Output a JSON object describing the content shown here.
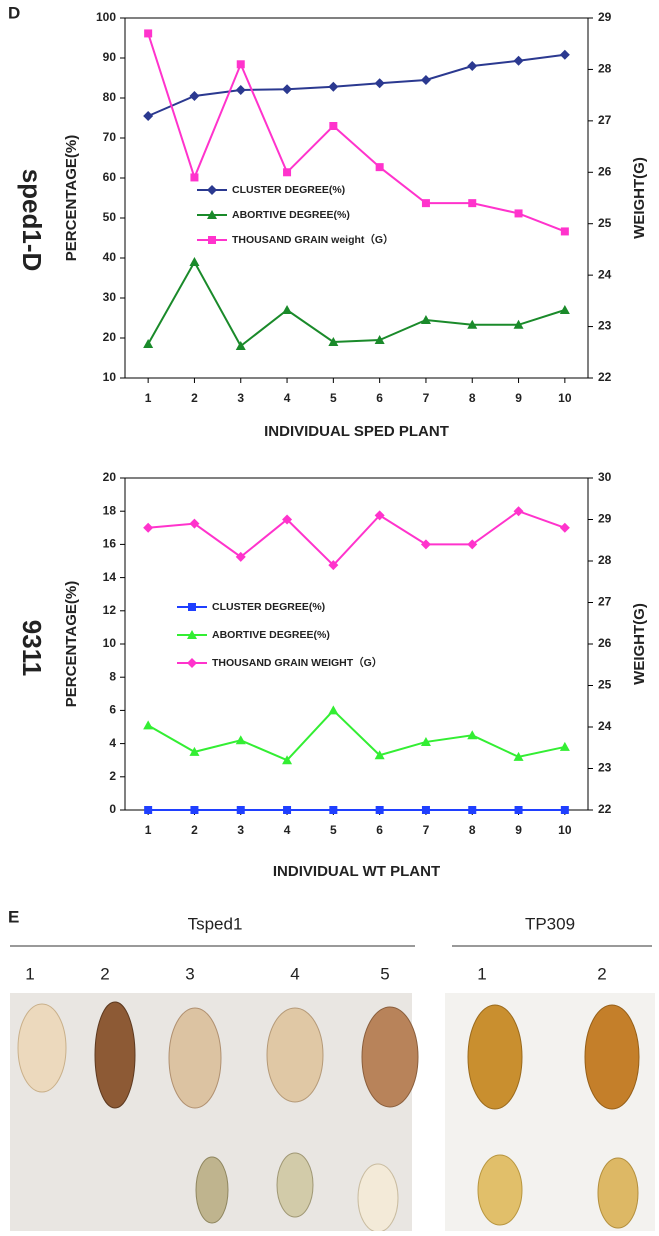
{
  "figure": {
    "panel_d": "D",
    "panel_e": "E",
    "side_labels": [
      "sped1-D",
      "9311"
    ],
    "groups": [
      {
        "name": "Tsped1",
        "items": [
          "1",
          "2",
          "3",
          "4",
          "5"
        ]
      },
      {
        "name": "TP309",
        "items": [
          "1",
          "2"
        ]
      }
    ]
  },
  "chart_data": [
    {
      "type": "line",
      "xlabel": "INDIVIDUAL SPED PLANT",
      "ylabel": "PERCENTAGE(%)",
      "y2label": "WEIGHT(G)",
      "categories": [
        1,
        2,
        3,
        4,
        5,
        6,
        7,
        8,
        9,
        10
      ],
      "ylim": [
        10,
        100
      ],
      "yticks": [
        10,
        20,
        30,
        40,
        50,
        60,
        70,
        80,
        90,
        100
      ],
      "y2lim": [
        22,
        29
      ],
      "y2ticks": [
        22,
        23,
        24,
        25,
        26,
        27,
        28,
        29
      ],
      "series": [
        {
          "name": "CLUSTER DEGREE(%)",
          "color": "#2b3990",
          "marker": "diamond",
          "values": [
            75.5,
            80.5,
            82,
            82.2,
            82.8,
            83.7,
            84.5,
            88,
            89.3,
            90.8
          ]
        },
        {
          "name": "ABORTIVE DEGREE(%)",
          "color": "#1a8a2a",
          "marker": "triangle",
          "values": [
            18.5,
            39,
            18,
            27,
            19,
            19.5,
            24.5,
            23.3,
            23.3,
            27
          ]
        },
        {
          "name": "THOUSAND GRAIN weight（G）",
          "color": "#ff33cc",
          "marker": "square",
          "axis": "y2",
          "values": [
            28.7,
            25.9,
            28.1,
            26.0,
            26.9,
            26.1,
            25.4,
            25.4,
            25.2,
            24.85
          ]
        }
      ]
    },
    {
      "type": "line",
      "xlabel": "INDIVIDUAL WT PLANT",
      "ylabel": "PERCENTAGE(%)",
      "y2label": "WEIGHT(G)",
      "categories": [
        1,
        2,
        3,
        4,
        5,
        6,
        7,
        8,
        9,
        10
      ],
      "ylim": [
        0,
        20
      ],
      "yticks": [
        0,
        2,
        4,
        6,
        8,
        10,
        12,
        14,
        16,
        18,
        20
      ],
      "y2lim": [
        22,
        30
      ],
      "y2ticks": [
        22,
        23,
        24,
        25,
        26,
        27,
        28,
        29,
        30
      ],
      "series": [
        {
          "name": "CLUSTER DEGREE(%)",
          "color": "#1f3fff",
          "marker": "square",
          "values": [
            0,
            0,
            0,
            0,
            0,
            0,
            0,
            0,
            0,
            0
          ]
        },
        {
          "name": "ABORTIVE DEGREE(%)",
          "color": "#33ee33",
          "marker": "triangle",
          "values": [
            5.1,
            3.5,
            4.2,
            3.0,
            6.0,
            3.3,
            4.1,
            4.5,
            3.2,
            3.8
          ]
        },
        {
          "name": "THOUSAND GRAIN WEIGHT（G）",
          "color": "#ff33cc",
          "marker": "diamond",
          "axis": "y2",
          "values": [
            28.8,
            28.9,
            28.1,
            29.0,
            27.9,
            29.1,
            28.4,
            28.4,
            29.2,
            28.8
          ]
        }
      ]
    }
  ]
}
